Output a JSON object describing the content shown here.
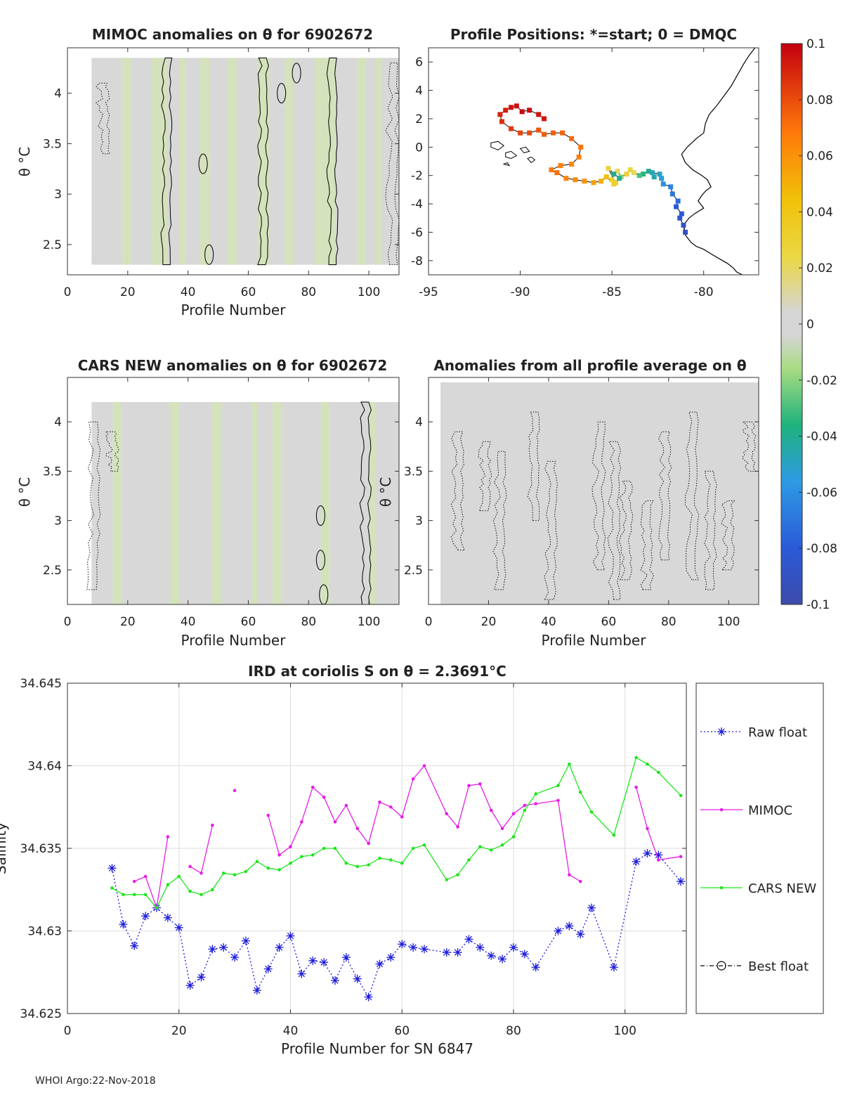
{
  "titles": {
    "panel1": "MIMOC anomalies on θ  for 6902672",
    "panel2": "Profile Positions: *=start; 0 = DMQC",
    "panel3": "CARS NEW anomalies on θ for 6902672",
    "panel4": "Anomalies from all profile average on θ",
    "panel5": "IRD at coriolis S on θ = 2.3691°C"
  },
  "axis_labels": {
    "profile_number": "Profile Number",
    "theta_c": "θ °C",
    "profile_number_sn": "Profile Number for SN 6847",
    "salinity": "Salinity"
  },
  "footer": "WHOI Argo:22-Nov-2018",
  "colors": {
    "raw": "#1a1adb",
    "mimoc": "#e61ee6",
    "cars": "#1ee61e",
    "best": "#000000",
    "field": "#d8d8d8",
    "tint": "#d3e6b4"
  },
  "chart_data": [
    {
      "type": "heatmap",
      "title": "MIMOC anomalies on θ  for 6902672",
      "xlabel": "Profile Number",
      "ylabel": "θ °C",
      "xlim": [
        0,
        110
      ],
      "ylim": [
        2.2,
        4.45
      ],
      "xticks": [
        0,
        20,
        40,
        60,
        80,
        100
      ],
      "yticks": [
        2.5,
        3,
        3.5,
        4
      ],
      "ytick_labels": [
        "2.5",
        "3",
        "3.5",
        "4"
      ],
      "field_range": {
        "x": [
          8,
          110
        ],
        "y": [
          2.3,
          4.35
        ]
      },
      "tinted_profiles": [
        18,
        19,
        20,
        28,
        29,
        30,
        31,
        32,
        37,
        38,
        44,
        45,
        46,
        53,
        54,
        55,
        63,
        64,
        65,
        66,
        72,
        73,
        74,
        82,
        83,
        84,
        85,
        86,
        87,
        88,
        96,
        97,
        98,
        102,
        103
      ]
    },
    {
      "type": "scatter",
      "title": "Profile Positions: *=start; 0 = DMQC",
      "xlim": [
        -95,
        -77
      ],
      "ylim": [
        -9,
        7
      ],
      "xticks": [
        -95,
        -90,
        -85,
        -80
      ],
      "yticks": [
        -8,
        -6,
        -4,
        -2,
        0,
        2,
        4,
        6
      ],
      "colorbar": {
        "min": -0.1,
        "max": 0.1,
        "ticks": [
          0.1,
          0.08,
          0.06,
          0.04,
          0.02,
          0,
          -0.02,
          -0.04,
          -0.06,
          -0.08,
          -0.1
        ],
        "tick_labels": [
          "0.1",
          "0.08",
          "0.06",
          "0.04",
          "0.02",
          "0",
          "-0.02",
          "-0.04",
          "-0.06",
          "-0.08",
          "-0.1"
        ]
      },
      "track": {
        "lon": [
          -81.0,
          -81.1,
          -81.3,
          -81.2,
          -81.5,
          -81.4,
          -81.7,
          -81.8,
          -82.2,
          -82.3,
          -82.4,
          -82.8,
          -82.7,
          -83.0,
          -83.3,
          -83.5,
          -83.8,
          -84.0,
          -84.2,
          -84.5,
          -84.7,
          -84.9,
          -85.0,
          -84.8,
          -85.2,
          -84.6,
          -84.9,
          -85.3,
          -85.6,
          -86.0,
          -86.5,
          -87.0,
          -87.5,
          -88.0,
          -88.3,
          -87.8,
          -87.2,
          -86.8,
          -86.7,
          -87.2,
          -87.7,
          -88.2,
          -88.7,
          -89.0,
          -89.5,
          -90.0,
          -90.5,
          -91.0,
          -91.1,
          -90.8,
          -90.5,
          -90.2,
          -89.9,
          -89.5,
          -89.0,
          -88.7
        ],
        "lat": [
          -6.0,
          -5.5,
          -5.0,
          -4.7,
          -4.2,
          -3.8,
          -3.3,
          -2.8,
          -2.6,
          -2.2,
          -1.9,
          -1.8,
          -2.1,
          -1.7,
          -1.9,
          -2.0,
          -1.8,
          -1.6,
          -1.9,
          -2.1,
          -1.7,
          -1.9,
          -2.3,
          -2.5,
          -1.5,
          -2.2,
          -2.6,
          -2.1,
          -2.4,
          -2.5,
          -2.4,
          -2.3,
          -2.2,
          -1.8,
          -1.6,
          -1.3,
          -1.2,
          -0.7,
          0.0,
          0.6,
          1.0,
          1.0,
          0.9,
          1.2,
          1.0,
          1.0,
          1.3,
          1.8,
          2.3,
          2.6,
          2.8,
          2.9,
          2.5,
          2.6,
          2.3,
          2.0
        ],
        "anomaly": [
          -0.09,
          -0.09,
          -0.085,
          -0.08,
          -0.08,
          -0.075,
          -0.07,
          -0.065,
          -0.06,
          -0.055,
          -0.05,
          -0.05,
          -0.045,
          -0.04,
          -0.035,
          -0.03,
          0.02,
          0.025,
          0.03,
          -0.02,
          0.02,
          -0.04,
          0.03,
          0.035,
          0.025,
          -0.04,
          0.03,
          0.045,
          0.05,
          0.055,
          0.06,
          0.062,
          0.065,
          0.07,
          0.068,
          0.066,
          0.064,
          0.066,
          0.07,
          0.072,
          0.074,
          0.075,
          0.076,
          0.078,
          0.08,
          0.082,
          0.085,
          0.088,
          0.09,
          0.092,
          0.095,
          0.096,
          0.098,
          0.097,
          0.095,
          0.094
        ]
      },
      "coast": {
        "lon": [
          -77.2,
          -77.5,
          -77.8,
          -78.2,
          -78.5,
          -78.9,
          -79.3,
          -79.7,
          -79.9,
          -80.0,
          -80.4,
          -80.9,
          -81.2,
          -81.0,
          -80.6,
          -80.1,
          -79.8,
          -79.6,
          -79.9,
          -80.1,
          -80.3,
          -80.0,
          -80.5,
          -80.8,
          -81.1,
          -81.0,
          -80.7,
          -80.4,
          -80.2,
          -80.0,
          -79.5,
          -79.1,
          -78.7,
          -78.4,
          -78.2,
          -77.9
        ],
        "lat": [
          7.0,
          6.5,
          5.9,
          5.0,
          4.3,
          3.6,
          2.9,
          2.3,
          1.7,
          1.0,
          0.6,
          0.0,
          -0.5,
          -1.1,
          -1.6,
          -2.0,
          -2.3,
          -2.8,
          -3.1,
          -3.4,
          -3.8,
          -4.3,
          -4.7,
          -5.0,
          -5.5,
          -6.2,
          -6.7,
          -7.0,
          -7.1,
          -7.2,
          -7.6,
          -7.9,
          -8.2,
          -8.5,
          -8.8,
          -9.0
        ]
      },
      "islands": [
        {
          "lon": [
            -91.6,
            -91.2,
            -90.9,
            -91.2,
            -91.6
          ],
          "lat": [
            0.3,
            0.4,
            0.1,
            -0.2,
            0.0
          ]
        },
        {
          "lon": [
            -90.8,
            -90.5,
            -90.2,
            -90.5,
            -90.8
          ],
          "lat": [
            -0.4,
            -0.3,
            -0.6,
            -0.8,
            -0.7
          ]
        },
        {
          "lon": [
            -90.0,
            -89.7,
            -89.5,
            -89.8
          ],
          "lat": [
            -0.1,
            0.0,
            -0.3,
            -0.4
          ]
        },
        {
          "lon": [
            -89.6,
            -89.4,
            -89.2,
            -89.4
          ],
          "lat": [
            -0.8,
            -0.7,
            -0.9,
            -1.1
          ]
        },
        {
          "lon": [
            -90.9,
            -90.7,
            -90.6
          ],
          "lat": [
            -1.2,
            -1.1,
            -1.3
          ]
        }
      ]
    },
    {
      "type": "heatmap",
      "title": "CARS NEW anomalies on θ for 6902672",
      "xlabel": "Profile Number",
      "ylabel": "θ °C",
      "xlim": [
        0,
        110
      ],
      "ylim": [
        2.15,
        4.45
      ],
      "xticks": [
        0,
        20,
        40,
        60,
        80,
        100
      ],
      "yticks": [
        2.5,
        3,
        3.5,
        4
      ],
      "ytick_labels": [
        "2.5",
        "3",
        "3.5",
        "4"
      ],
      "field_range": {
        "x": [
          8,
          110
        ],
        "y": [
          2.15,
          4.2
        ]
      },
      "tinted_profiles": [
        15,
        16,
        17,
        34,
        35,
        36,
        48,
        49,
        50,
        61,
        62,
        68,
        69,
        70,
        84,
        85,
        86,
        100,
        101
      ]
    },
    {
      "type": "heatmap",
      "title": "Anomalies from all profile average on θ",
      "xlabel": "Profile Number",
      "ylabel": "θ °C",
      "xlim": [
        0,
        110
      ],
      "ylim": [
        2.15,
        4.45
      ],
      "xticks": [
        0,
        20,
        40,
        60,
        80,
        100
      ],
      "yticks": [
        2.5,
        3,
        3.5,
        4
      ],
      "ytick_labels": [
        "2.5",
        "3",
        "3.5",
        "4"
      ],
      "field_range": {
        "x": [
          4,
          110
        ],
        "y": [
          2.15,
          4.4
        ]
      },
      "tinted_profiles": []
    },
    {
      "type": "line",
      "title": "IRD at coriolis S on θ = 2.3691°C",
      "xlabel": "Profile Number for SN 6847",
      "ylabel": "Salinity",
      "xlim": [
        0,
        111
      ],
      "ylim": [
        34.625,
        34.645
      ],
      "xticks": [
        0,
        20,
        40,
        60,
        80,
        100
      ],
      "yticks": [
        34.625,
        34.63,
        34.635,
        34.64,
        34.645
      ],
      "ytick_labels": [
        "34.625",
        "34.63",
        "34.635",
        "34.64",
        "34.645"
      ],
      "legend": [
        "Raw float",
        "MIMOC",
        "CARS NEW",
        "Best float"
      ],
      "series": [
        {
          "name": "Raw float",
          "x": [
            8,
            10,
            12,
            14,
            16,
            18,
            20,
            22,
            24,
            26,
            28,
            30,
            32,
            34,
            36,
            38,
            40,
            42,
            44,
            46,
            48,
            50,
            52,
            54,
            56,
            58,
            60,
            62,
            64,
            68,
            70,
            72,
            74,
            76,
            78,
            80,
            82,
            84,
            88,
            90,
            92,
            94,
            98,
            102,
            104,
            106,
            110
          ],
          "y": [
            34.6338,
            34.6304,
            34.6291,
            34.6309,
            34.6314,
            34.6308,
            34.6302,
            34.6267,
            34.6272,
            34.6289,
            34.629,
            34.6284,
            34.6294,
            34.6264,
            34.6277,
            34.629,
            34.6297,
            34.6274,
            34.6282,
            34.6281,
            34.627,
            34.6284,
            34.6271,
            34.626,
            34.628,
            34.6284,
            34.6292,
            34.629,
            34.6289,
            34.6287,
            34.6287,
            34.6295,
            34.629,
            34.6285,
            34.6283,
            34.629,
            34.6286,
            34.6278,
            34.63,
            34.6303,
            34.6298,
            34.6314,
            34.6278,
            34.6342,
            34.6347,
            34.6346,
            34.633
          ]
        },
        {
          "name": "MIMOC",
          "x": [
            12,
            14,
            16,
            18,
            null,
            22,
            24,
            26,
            null,
            30,
            null,
            36,
            38,
            40,
            42,
            44,
            46,
            48,
            50,
            52,
            54,
            56,
            58,
            60,
            62,
            64,
            68,
            70,
            72,
            74,
            76,
            78,
            80,
            82,
            84,
            88,
            90,
            92,
            null,
            102,
            104,
            106,
            110
          ],
          "y": [
            34.633,
            34.6333,
            34.6314,
            34.6357,
            null,
            34.6339,
            34.6335,
            34.6364,
            null,
            34.6385,
            null,
            34.637,
            34.6346,
            34.6351,
            34.6366,
            34.6387,
            34.6381,
            34.6366,
            34.6376,
            34.6362,
            34.6353,
            34.6378,
            34.6375,
            34.6369,
            34.6392,
            34.64,
            34.6371,
            34.6363,
            34.6388,
            34.6389,
            34.6373,
            34.6362,
            34.6371,
            34.6376,
            34.6377,
            34.6379,
            34.6334,
            34.633,
            null,
            34.6387,
            34.6362,
            34.6343,
            34.6345
          ]
        },
        {
          "name": "CARS NEW",
          "x": [
            8,
            10,
            12,
            14,
            16,
            18,
            20,
            22,
            24,
            26,
            28,
            30,
            32,
            34,
            36,
            38,
            40,
            42,
            44,
            46,
            48,
            50,
            52,
            54,
            56,
            58,
            60,
            62,
            64,
            68,
            70,
            72,
            74,
            76,
            78,
            80,
            82,
            84,
            88,
            90,
            92,
            94,
            98,
            102,
            104,
            106,
            110
          ],
          "y": [
            34.6326,
            34.6322,
            34.6322,
            34.6322,
            34.6314,
            34.6328,
            34.6333,
            34.6324,
            34.6322,
            34.6325,
            34.6335,
            34.6334,
            34.6336,
            34.6342,
            34.6338,
            34.6337,
            34.6341,
            34.6345,
            34.6346,
            34.635,
            34.635,
            34.6341,
            34.6339,
            34.634,
            34.6344,
            34.6343,
            34.6341,
            34.635,
            34.6352,
            34.6331,
            34.6334,
            34.6343,
            34.6351,
            34.6349,
            34.6352,
            34.6357,
            34.6373,
            34.6383,
            34.6388,
            34.6401,
            34.6384,
            34.6372,
            34.6358,
            34.6405,
            34.6401,
            34.6396,
            34.6382
          ]
        },
        {
          "name": "Best float",
          "x": [],
          "y": []
        }
      ]
    }
  ]
}
